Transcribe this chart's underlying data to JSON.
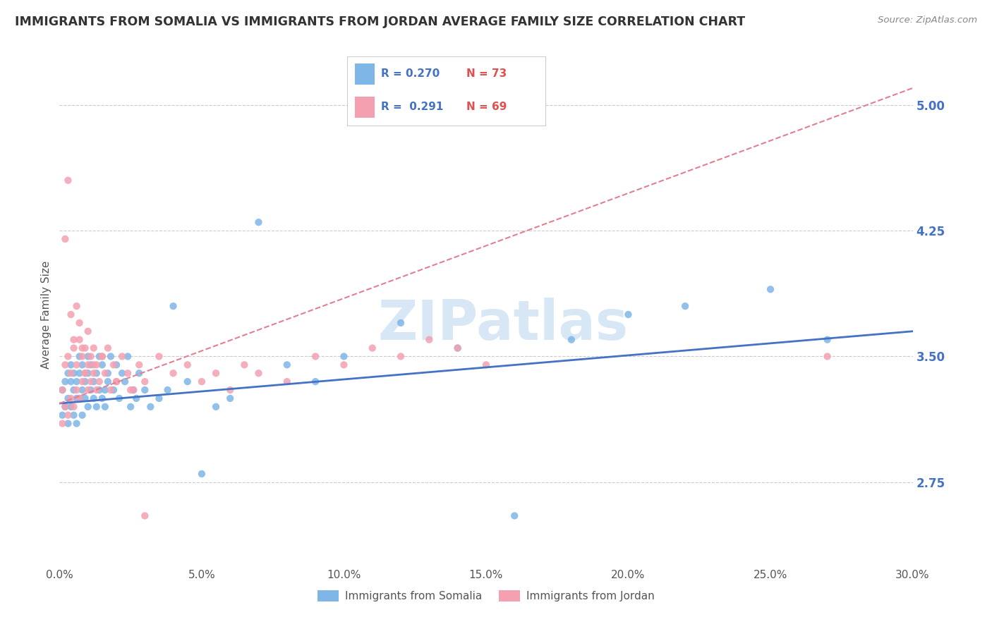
{
  "title": "IMMIGRANTS FROM SOMALIA VS IMMIGRANTS FROM JORDAN AVERAGE FAMILY SIZE CORRELATION CHART",
  "source": "Source: ZipAtlas.com",
  "ylabel": "Average Family Size",
  "xlim": [
    0.0,
    0.3
  ],
  "ylim": [
    2.25,
    5.25
  ],
  "yticks": [
    2.75,
    3.5,
    4.25,
    5.0
  ],
  "xtick_labels": [
    "0.0%",
    "5.0%",
    "10.0%",
    "15.0%",
    "20.0%",
    "25.0%",
    "30.0%"
  ],
  "xtick_vals": [
    0.0,
    0.05,
    0.1,
    0.15,
    0.2,
    0.25,
    0.3
  ],
  "somalia_color": "#7eb6e8",
  "jordan_color": "#f4a0b0",
  "trend_somalia_color": "#4472c4",
  "trend_jordan_color": "#e08090",
  "R_somalia": 0.27,
  "N_somalia": 73,
  "R_jordan": 0.291,
  "N_jordan": 69,
  "legend_label_somalia": "Immigrants from Somalia",
  "legend_label_jordan": "Immigrants from Jordan",
  "watermark": "ZIPatlas",
  "somalia_x": [
    0.001,
    0.001,
    0.002,
    0.002,
    0.003,
    0.003,
    0.003,
    0.004,
    0.004,
    0.004,
    0.005,
    0.005,
    0.005,
    0.006,
    0.006,
    0.006,
    0.007,
    0.007,
    0.007,
    0.008,
    0.008,
    0.008,
    0.009,
    0.009,
    0.01,
    0.01,
    0.01,
    0.011,
    0.011,
    0.012,
    0.012,
    0.013,
    0.013,
    0.014,
    0.014,
    0.015,
    0.015,
    0.016,
    0.016,
    0.017,
    0.017,
    0.018,
    0.019,
    0.02,
    0.021,
    0.022,
    0.023,
    0.024,
    0.025,
    0.026,
    0.027,
    0.028,
    0.03,
    0.032,
    0.035,
    0.038,
    0.04,
    0.045,
    0.05,
    0.055,
    0.06,
    0.07,
    0.08,
    0.09,
    0.1,
    0.12,
    0.14,
    0.16,
    0.18,
    0.2,
    0.22,
    0.25,
    0.27
  ],
  "somalia_y": [
    3.3,
    3.15,
    3.35,
    3.2,
    3.4,
    3.25,
    3.1,
    3.35,
    3.2,
    3.45,
    3.3,
    3.15,
    3.4,
    3.25,
    3.35,
    3.1,
    3.4,
    3.25,
    3.5,
    3.3,
    3.15,
    3.45,
    3.25,
    3.35,
    3.2,
    3.4,
    3.5,
    3.3,
    3.45,
    3.25,
    3.35,
    3.2,
    3.4,
    3.3,
    3.5,
    3.25,
    3.45,
    3.3,
    3.2,
    3.4,
    3.35,
    3.5,
    3.3,
    3.45,
    3.25,
    3.4,
    3.35,
    3.5,
    3.2,
    3.3,
    3.25,
    3.4,
    3.3,
    3.2,
    3.25,
    3.3,
    3.8,
    3.35,
    2.8,
    3.2,
    3.25,
    4.3,
    3.45,
    3.35,
    3.5,
    3.7,
    3.55,
    2.55,
    3.6,
    3.75,
    3.8,
    3.9,
    3.6
  ],
  "jordan_x": [
    0.001,
    0.001,
    0.002,
    0.002,
    0.003,
    0.003,
    0.004,
    0.004,
    0.005,
    0.005,
    0.006,
    0.006,
    0.007,
    0.007,
    0.008,
    0.008,
    0.009,
    0.009,
    0.01,
    0.01,
    0.011,
    0.011,
    0.012,
    0.012,
    0.013,
    0.013,
    0.014,
    0.015,
    0.016,
    0.017,
    0.018,
    0.019,
    0.02,
    0.022,
    0.024,
    0.026,
    0.028,
    0.03,
    0.035,
    0.04,
    0.045,
    0.05,
    0.055,
    0.06,
    0.065,
    0.07,
    0.08,
    0.09,
    0.1,
    0.11,
    0.12,
    0.13,
    0.14,
    0.15,
    0.002,
    0.003,
    0.004,
    0.005,
    0.006,
    0.007,
    0.008,
    0.009,
    0.01,
    0.012,
    0.015,
    0.02,
    0.025,
    0.03,
    0.27
  ],
  "jordan_y": [
    3.3,
    3.1,
    3.45,
    3.2,
    3.5,
    3.15,
    3.4,
    3.25,
    3.55,
    3.2,
    3.45,
    3.3,
    3.6,
    3.25,
    3.5,
    3.35,
    3.4,
    3.55,
    3.3,
    3.45,
    3.5,
    3.35,
    3.55,
    3.4,
    3.3,
    3.45,
    3.35,
    3.5,
    3.4,
    3.55,
    3.3,
    3.45,
    3.35,
    3.5,
    3.4,
    3.3,
    3.45,
    3.35,
    3.5,
    3.4,
    3.45,
    3.35,
    3.4,
    3.3,
    3.45,
    3.4,
    3.35,
    3.5,
    3.45,
    3.55,
    3.5,
    3.6,
    3.55,
    3.45,
    4.2,
    4.55,
    3.75,
    3.6,
    3.8,
    3.7,
    3.55,
    3.4,
    3.65,
    3.45,
    3.5,
    3.35,
    3.3,
    2.55,
    3.5
  ],
  "trend_somalia_x0": 0.0,
  "trend_somalia_x1": 0.3,
  "trend_somalia_y0": 3.22,
  "trend_somalia_y1": 3.65,
  "trend_jordan_x0": 0.0,
  "trend_jordan_x1": 0.3,
  "trend_jordan_y0": 3.22,
  "trend_jordan_y1": 5.1
}
